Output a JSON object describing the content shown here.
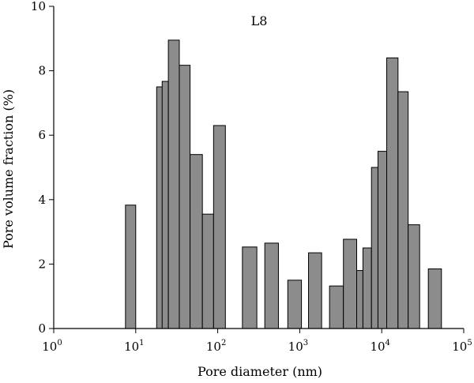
{
  "chart_data": {
    "type": "bar",
    "title": "L8",
    "xlabel": "Pore diameter (nm)",
    "ylabel": "Pore volume fraction (%)",
    "x_scale": "log",
    "xlim": [
      1,
      100000
    ],
    "ylim": [
      0,
      10
    ],
    "grid": false,
    "bar_color": "#8c8c8c",
    "x_ticks": [
      {
        "base": "10",
        "exp": "0"
      },
      {
        "base": "10",
        "exp": "1"
      },
      {
        "base": "10",
        "exp": "2"
      },
      {
        "base": "10",
        "exp": "3"
      },
      {
        "base": "10",
        "exp": "4"
      },
      {
        "base": "10",
        "exp": "5"
      }
    ],
    "y_ticks": [
      "0",
      "2",
      "4",
      "6",
      "8",
      "10"
    ],
    "bars": [
      {
        "x_start": 7.5,
        "x_end": 10,
        "value": 3.83
      },
      {
        "x_start": 18,
        "x_end": 24,
        "value": 7.5
      },
      {
        "x_start": 21,
        "x_end": 25,
        "value": 7.67
      },
      {
        "x_start": 25,
        "x_end": 34,
        "value": 8.95
      },
      {
        "x_start": 34,
        "x_end": 46,
        "value": 8.17
      },
      {
        "x_start": 46,
        "x_end": 65,
        "value": 5.4
      },
      {
        "x_start": 65,
        "x_end": 89,
        "value": 3.55
      },
      {
        "x_start": 89,
        "x_end": 124,
        "value": 6.3
      },
      {
        "x_start": 200,
        "x_end": 300,
        "value": 2.53
      },
      {
        "x_start": 375,
        "x_end": 550,
        "value": 2.65
      },
      {
        "x_start": 715,
        "x_end": 1050,
        "value": 1.5
      },
      {
        "x_start": 1280,
        "x_end": 1850,
        "value": 2.35
      },
      {
        "x_start": 2310,
        "x_end": 3410,
        "value": 1.32
      },
      {
        "x_start": 3410,
        "x_end": 4950,
        "value": 2.77
      },
      {
        "x_start": 4950,
        "x_end": 5900,
        "value": 1.8
      },
      {
        "x_start": 5900,
        "x_end": 7500,
        "value": 2.5
      },
      {
        "x_start": 7500,
        "x_end": 9000,
        "value": 5.0
      },
      {
        "x_start": 9000,
        "x_end": 11500,
        "value": 5.5
      },
      {
        "x_start": 11500,
        "x_end": 15800,
        "value": 8.4
      },
      {
        "x_start": 15800,
        "x_end": 21000,
        "value": 7.35
      },
      {
        "x_start": 21000,
        "x_end": 29000,
        "value": 3.22
      },
      {
        "x_start": 37000,
        "x_end": 53500,
        "value": 1.85
      }
    ]
  }
}
